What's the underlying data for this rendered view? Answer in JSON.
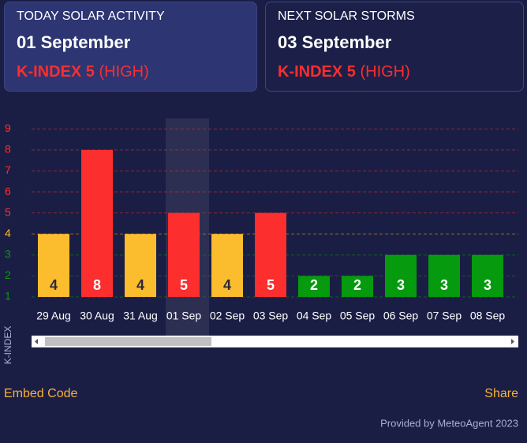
{
  "cards": [
    {
      "heading": "TODAY SOLAR ACTIVITY",
      "date": "01 September",
      "index": "K-INDEX 5",
      "level": "(HIGH)"
    },
    {
      "heading": "NEXT SOLAR STORMS",
      "date": "03 September",
      "index": "K-INDEX 5",
      "level": "(HIGH)"
    }
  ],
  "chart_data": {
    "type": "bar",
    "y_label": "K-INDEX",
    "categories": [
      "29 Aug",
      "30 Aug",
      "31 Aug",
      "01 Sep",
      "02 Sep",
      "03 Sep",
      "04 Sep",
      "05 Sep",
      "06 Sep",
      "07 Sep",
      "08 Sep"
    ],
    "values": [
      4,
      8,
      4,
      5,
      4,
      5,
      2,
      2,
      3,
      3,
      3
    ],
    "colors": [
      "#fbbd2e",
      "#fc2e2e",
      "#fbbd2e",
      "#fc2e2e",
      "#fbbd2e",
      "#fc2e2e",
      "#069a0e",
      "#069a0e",
      "#069a0e",
      "#069a0e",
      "#069a0e"
    ],
    "label_colors": [
      "#2a2a3a",
      "#ffffff",
      "#2a2a3a",
      "#ffffff",
      "#2a2a3a",
      "#ffffff",
      "#ffffff",
      "#ffffff",
      "#ffffff",
      "#ffffff",
      "#ffffff"
    ],
    "highlight_index": 3,
    "ylim": [
      1,
      9.5
    ],
    "yticks": [
      1,
      2,
      3,
      4,
      5,
      6,
      7,
      8,
      9
    ],
    "ytick_colors": [
      "#069a0e",
      "#069a0e",
      "#069a0e",
      "#fbbd2e",
      "#fc2e2e",
      "#fc2e2e",
      "#fc2e2e",
      "#fc2e2e",
      "#fc2e2e"
    ],
    "grid": true
  },
  "links": {
    "embed": "Embed Code",
    "share": "Share"
  },
  "footer": "Provided by MeteoAgent 2023"
}
